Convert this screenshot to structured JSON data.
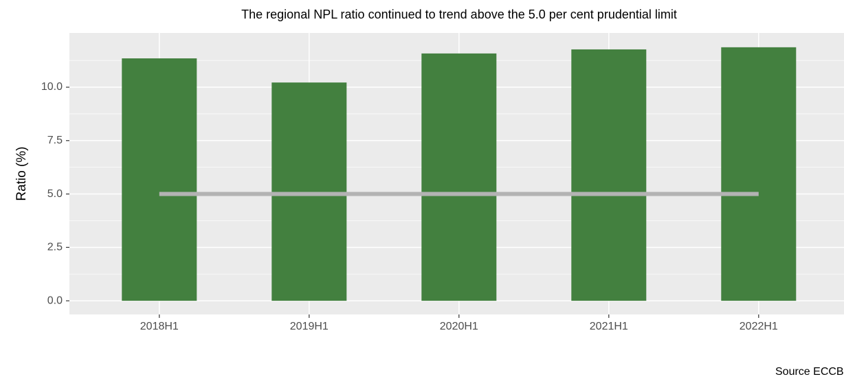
{
  "chart_data": {
    "type": "bar",
    "title": "The regional NPL ratio continued to trend above the 5.0 per cent prudential limit",
    "y_label": "Ratio (%)",
    "caption": "Source ECCB",
    "categories": [
      "2018H1",
      "2019H1",
      "2020H1",
      "2021H1",
      "2022H1"
    ],
    "values": [
      11.35,
      10.22,
      11.58,
      11.77,
      11.87
    ],
    "color": "#43803f",
    "reference_line": {
      "values": [
        5.0,
        5.0,
        5.0,
        5.0,
        5.0
      ],
      "color": "#b3b3b3"
    },
    "ylim": [
      -0.64,
      12.54
    ],
    "yticks": [
      {
        "value": 0,
        "label": "0.0"
      },
      {
        "value": 2.5,
        "label": "2.5"
      },
      {
        "value": 5,
        "label": "5.0"
      },
      {
        "value": 7.5,
        "label": "7.5"
      },
      {
        "value": 10,
        "label": "10.0"
      }
    ],
    "grid": true
  }
}
